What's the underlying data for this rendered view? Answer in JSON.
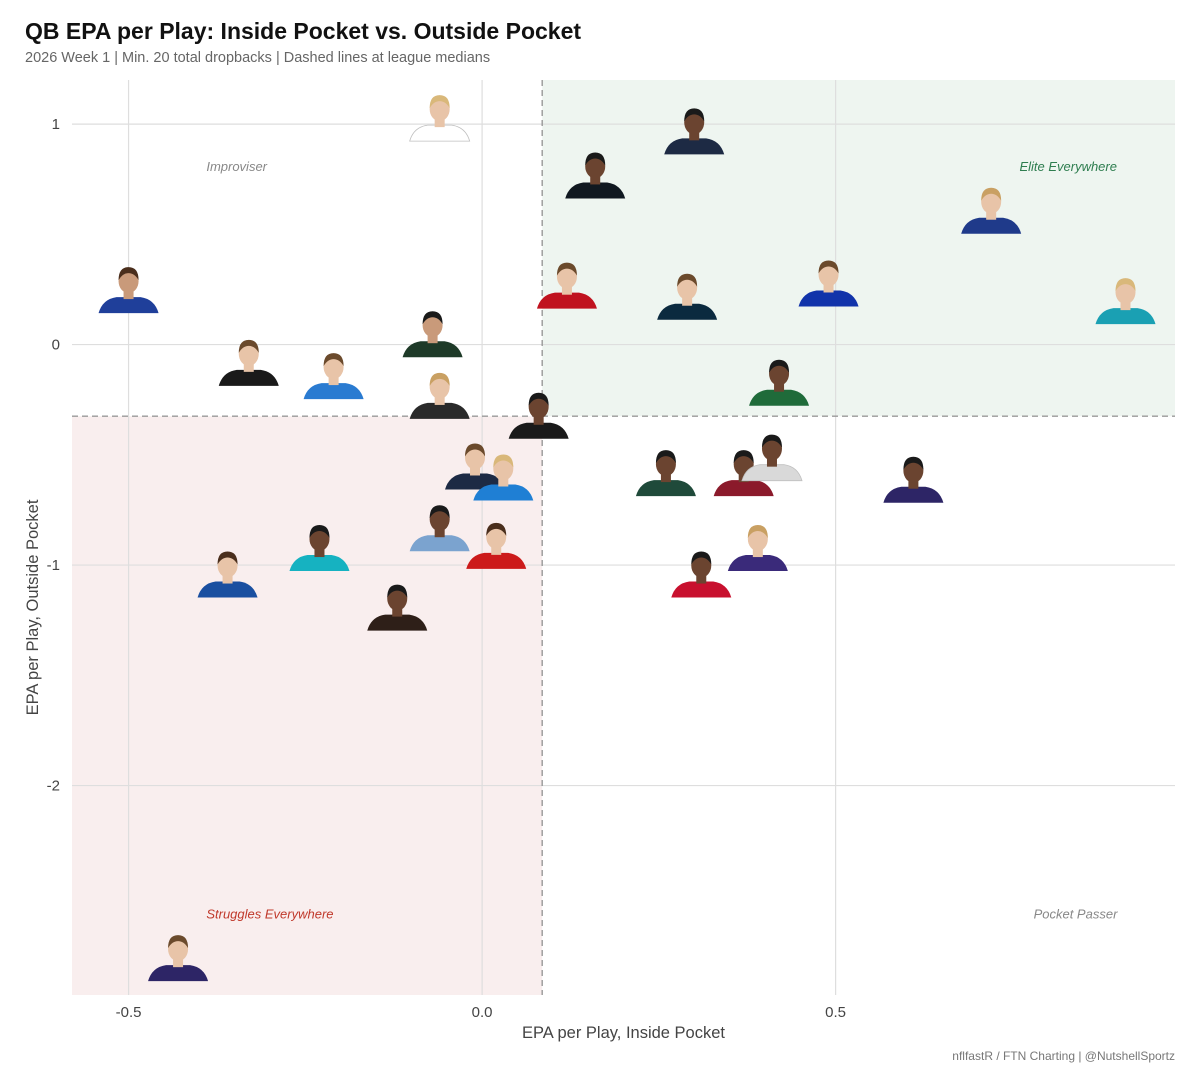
{
  "title": "QB EPA per Play: Inside Pocket vs. Outside Pocket",
  "subtitle": "2026 Week 1 | Min. 20 total dropbacks | Dashed lines at league medians",
  "caption": "nflfastR / FTN Charting | @NutshellSportz",
  "chart_data": {
    "type": "scatter",
    "xlabel": "EPA per Play, Inside Pocket",
    "ylabel": "EPA per Play, Outside Pocket",
    "xlim": [
      -0.58,
      0.98
    ],
    "ylim": [
      -2.95,
      1.2
    ],
    "x_ticks": [
      -0.5,
      0.0,
      0.5
    ],
    "x_tick_labels": [
      "-0.5",
      "0.0",
      "0.5"
    ],
    "y_ticks": [
      -2,
      -1,
      0,
      1
    ],
    "y_tick_labels": [
      "-2",
      "-1",
      "0",
      "1"
    ],
    "grid": true,
    "medians": {
      "x": 0.085,
      "y": -0.325
    },
    "quadrants": [
      {
        "label": "Elite Everywhere",
        "x": 0.76,
        "y": 0.81,
        "color": "#2e7d4f",
        "fill": "#eef5f0"
      },
      {
        "label": "Improviser",
        "x": -0.39,
        "y": 0.81,
        "color": "#888888",
        "fill": null
      },
      {
        "label": "Struggles Everywhere",
        "x": -0.39,
        "y": -2.58,
        "color": "#c0392b",
        "fill": "#f9eeee"
      },
      {
        "label": "Pocket Passer",
        "x": 0.78,
        "y": -2.58,
        "color": "#888888",
        "fill": null
      }
    ],
    "points": [
      {
        "x": -0.06,
        "y": 0.95,
        "jersey": "#ffffff",
        "skin": "#e8c4a8",
        "hair": "#d9b87a"
      },
      {
        "x": 0.3,
        "y": 0.89,
        "jersey": "#1d2a44",
        "skin": "#6b4430",
        "hair": "#1a1a1a"
      },
      {
        "x": 0.16,
        "y": 0.69,
        "jersey": "#101820",
        "skin": "#6b4430",
        "hair": "#1a1a1a"
      },
      {
        "x": 0.72,
        "y": 0.53,
        "jersey": "#1f3a8a",
        "skin": "#e8c4a8",
        "hair": "#c9a063"
      },
      {
        "x": -0.5,
        "y": 0.17,
        "jersey": "#1f3f9a",
        "skin": "#c99a7a",
        "hair": "#4a2e1c"
      },
      {
        "x": 0.12,
        "y": 0.19,
        "jersey": "#c0121f",
        "skin": "#e8c4a8",
        "hair": "#6b4a2c"
      },
      {
        "x": 0.29,
        "y": 0.14,
        "jersey": "#0b2a3f",
        "skin": "#e8c4a8",
        "hair": "#6b4a2c"
      },
      {
        "x": 0.49,
        "y": 0.2,
        "jersey": "#1133aa",
        "skin": "#e8c4a8",
        "hair": "#6b4a2c"
      },
      {
        "x": 0.91,
        "y": 0.12,
        "jersey": "#1aa0b3",
        "skin": "#e8c4a8",
        "hair": "#d9b87a"
      },
      {
        "x": -0.07,
        "y": -0.03,
        "jersey": "#1e3a28",
        "skin": "#c99a7a",
        "hair": "#1a1a1a"
      },
      {
        "x": -0.33,
        "y": -0.16,
        "jersey": "#1a1a1a",
        "skin": "#e8c4a8",
        "hair": "#6b4a2c"
      },
      {
        "x": -0.21,
        "y": -0.22,
        "jersey": "#2a7bd1",
        "skin": "#e8c4a8",
        "hair": "#6b4a2c"
      },
      {
        "x": 0.42,
        "y": -0.25,
        "jersey": "#1f6b3a",
        "skin": "#6b4430",
        "hair": "#1a1a1a"
      },
      {
        "x": -0.06,
        "y": -0.31,
        "jersey": "#2a2a2a",
        "skin": "#e8c4a8",
        "hair": "#c9a063"
      },
      {
        "x": 0.08,
        "y": -0.4,
        "jersey": "#1a1a1a",
        "skin": "#6b4430",
        "hair": "#1a1a1a"
      },
      {
        "x": -0.01,
        "y": -0.63,
        "jersey": "#1d2a44",
        "skin": "#e8c4a8",
        "hair": "#6b4a2c"
      },
      {
        "x": 0.03,
        "y": -0.68,
        "jersey": "#1f7fd4",
        "skin": "#e8c4a8",
        "hair": "#d9b87a"
      },
      {
        "x": 0.26,
        "y": -0.66,
        "jersey": "#1f4a3a",
        "skin": "#6b4430",
        "hair": "#1a1a1a"
      },
      {
        "x": 0.37,
        "y": -0.66,
        "jersey": "#8b1a2b",
        "skin": "#6b4430",
        "hair": "#1a1a1a"
      },
      {
        "x": 0.41,
        "y": -0.59,
        "jersey": "#d9d9d9",
        "skin": "#6b4430",
        "hair": "#1a1a1a"
      },
      {
        "x": 0.61,
        "y": -0.69,
        "jersey": "#2d2566",
        "skin": "#6b4430",
        "hair": "#1a1a1a"
      },
      {
        "x": -0.06,
        "y": -0.91,
        "jersey": "#7ba3cf",
        "skin": "#6b4430",
        "hair": "#1a1a1a"
      },
      {
        "x": 0.02,
        "y": -0.99,
        "jersey": "#cc1a1a",
        "skin": "#e8c4a8",
        "hair": "#4a2e1c"
      },
      {
        "x": -0.23,
        "y": -1.0,
        "jersey": "#16b2c1",
        "skin": "#6b4430",
        "hair": "#1a1a1a"
      },
      {
        "x": 0.39,
        "y": -1.0,
        "jersey": "#3a2a7a",
        "skin": "#e8c4a8",
        "hair": "#c9a063"
      },
      {
        "x": -0.36,
        "y": -1.12,
        "jersey": "#1a4fa0",
        "skin": "#e8c4a8",
        "hair": "#4a2e1c"
      },
      {
        "x": 0.31,
        "y": -1.12,
        "jersey": "#c8102e",
        "skin": "#6b4430",
        "hair": "#1a1a1a"
      },
      {
        "x": -0.12,
        "y": -1.27,
        "jersey": "#2e1f18",
        "skin": "#6b4430",
        "hair": "#1a1a1a"
      },
      {
        "x": -0.43,
        "y": -2.86,
        "jersey": "#2d2566",
        "skin": "#e8c4a8",
        "hair": "#6b4a2c"
      }
    ]
  }
}
